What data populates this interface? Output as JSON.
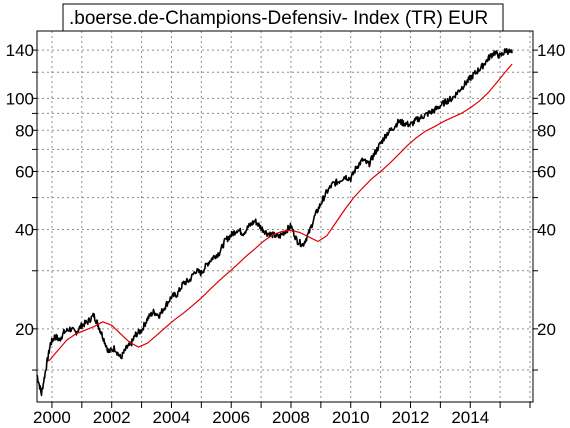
{
  "chart_data": {
    "type": "line",
    "title": ".boerse.de-Champions-Defensiv- Index (TR) EUR",
    "xlabel": "",
    "ylabel": "",
    "y_scale": "log",
    "grid": true,
    "xlim": [
      1999.5,
      2016.1
    ],
    "ylim": [
      12.0,
      160
    ],
    "x_ticks": [
      "2000",
      "2002",
      "2004",
      "2006",
      "2008",
      "2010",
      "2012",
      "2014"
    ],
    "y_ticks": [
      20,
      40,
      60,
      80,
      100,
      140
    ],
    "y_tick_labels": [
      "20",
      "40",
      "60",
      "80",
      "100",
      "140"
    ],
    "series": [
      {
        "color": "#000000",
        "x": [
          1999.5,
          1999.65,
          1999.8,
          1999.95,
          2000.1,
          2000.25,
          2000.4,
          2000.6,
          2000.8,
          2001.0,
          2001.2,
          2001.4,
          2001.55,
          2001.7,
          2001.9,
          2002.1,
          2002.3,
          2002.5,
          2002.65,
          2002.8,
          2003.0,
          2003.2,
          2003.4,
          2003.6,
          2003.8,
          2004.0,
          2004.2,
          2004.4,
          2004.6,
          2004.8,
          2005.0,
          2005.2,
          2005.4,
          2005.6,
          2005.8,
          2006.0,
          2006.2,
          2006.4,
          2006.6,
          2006.8,
          2007.0,
          2007.2,
          2007.4,
          2007.6,
          2007.8,
          2008.0,
          2008.2,
          2008.4,
          2008.6,
          2008.8,
          2009.0,
          2009.2,
          2009.4,
          2009.6,
          2009.8,
          2010.0,
          2010.2,
          2010.4,
          2010.6,
          2010.8,
          2011.0,
          2011.2,
          2011.4,
          2011.6,
          2011.8,
          2012.0,
          2012.2,
          2012.4,
          2012.6,
          2012.8,
          2013.0,
          2013.2,
          2013.4,
          2013.6,
          2013.8,
          2014.0,
          2014.2,
          2014.4,
          2014.6,
          2014.8,
          2015.0,
          2015.2,
          2015.4
        ],
        "values": [
          14.5,
          12.7,
          15.2,
          18.0,
          19.0,
          18.5,
          19.5,
          20.0,
          19.5,
          20.5,
          21.0,
          22.0,
          20.5,
          19.0,
          17.0,
          17.5,
          16.3,
          17.5,
          18.0,
          19.2,
          19.8,
          21.5,
          22.5,
          22.0,
          23.5,
          25.0,
          25.5,
          27.5,
          28.0,
          30.0,
          29.5,
          31.5,
          33.0,
          34.0,
          37.0,
          38.5,
          40.0,
          39.0,
          41.0,
          42.5,
          40.5,
          39.0,
          38.5,
          38.0,
          39.5,
          41.0,
          37.0,
          36.0,
          39.0,
          44.0,
          48.0,
          52.0,
          55.0,
          56.0,
          58.0,
          57.0,
          62.0,
          65.0,
          63.0,
          68.0,
          73.0,
          78.0,
          81.0,
          85.0,
          84.0,
          83.0,
          86.0,
          88.0,
          90.0,
          92.0,
          95.0,
          98.0,
          100.0,
          105.0,
          110.0,
          115.0,
          120.0,
          125.0,
          132.0,
          138.0,
          134.0,
          140.0,
          137.0
        ]
      },
      {
        "color": "#e00000",
        "x": [
          1999.9,
          2000.2,
          2000.5,
          2000.8,
          2001.1,
          2001.4,
          2001.7,
          2002.0,
          2002.3,
          2002.6,
          2002.9,
          2003.2,
          2003.5,
          2003.8,
          2004.1,
          2004.4,
          2004.7,
          2005.0,
          2005.3,
          2005.6,
          2005.9,
          2006.2,
          2006.5,
          2006.8,
          2007.1,
          2007.4,
          2007.7,
          2008.0,
          2008.3,
          2008.6,
          2008.9,
          2009.2,
          2009.5,
          2009.8,
          2010.1,
          2010.4,
          2010.7,
          2011.0,
          2011.3,
          2011.6,
          2011.9,
          2012.2,
          2012.5,
          2012.8,
          2013.1,
          2013.4,
          2013.7,
          2014.0,
          2014.3,
          2014.6,
          2014.9,
          2015.2,
          2015.4
        ],
        "values": [
          16.0,
          17.2,
          18.5,
          19.3,
          19.8,
          20.3,
          21.0,
          20.5,
          19.3,
          18.2,
          17.6,
          18.1,
          19.1,
          20.2,
          21.3,
          22.3,
          23.5,
          24.8,
          26.4,
          28.0,
          29.6,
          31.3,
          33.2,
          35.0,
          37.0,
          38.6,
          39.5,
          39.8,
          39.2,
          38.0,
          36.8,
          38.3,
          42.0,
          46.0,
          50.0,
          53.5,
          57.0,
          60.0,
          63.5,
          67.5,
          72.0,
          76.0,
          79.5,
          82.0,
          85.0,
          87.5,
          90.0,
          93.5,
          98.0,
          104.0,
          112.0,
          121.0,
          127.0
        ]
      }
    ]
  }
}
